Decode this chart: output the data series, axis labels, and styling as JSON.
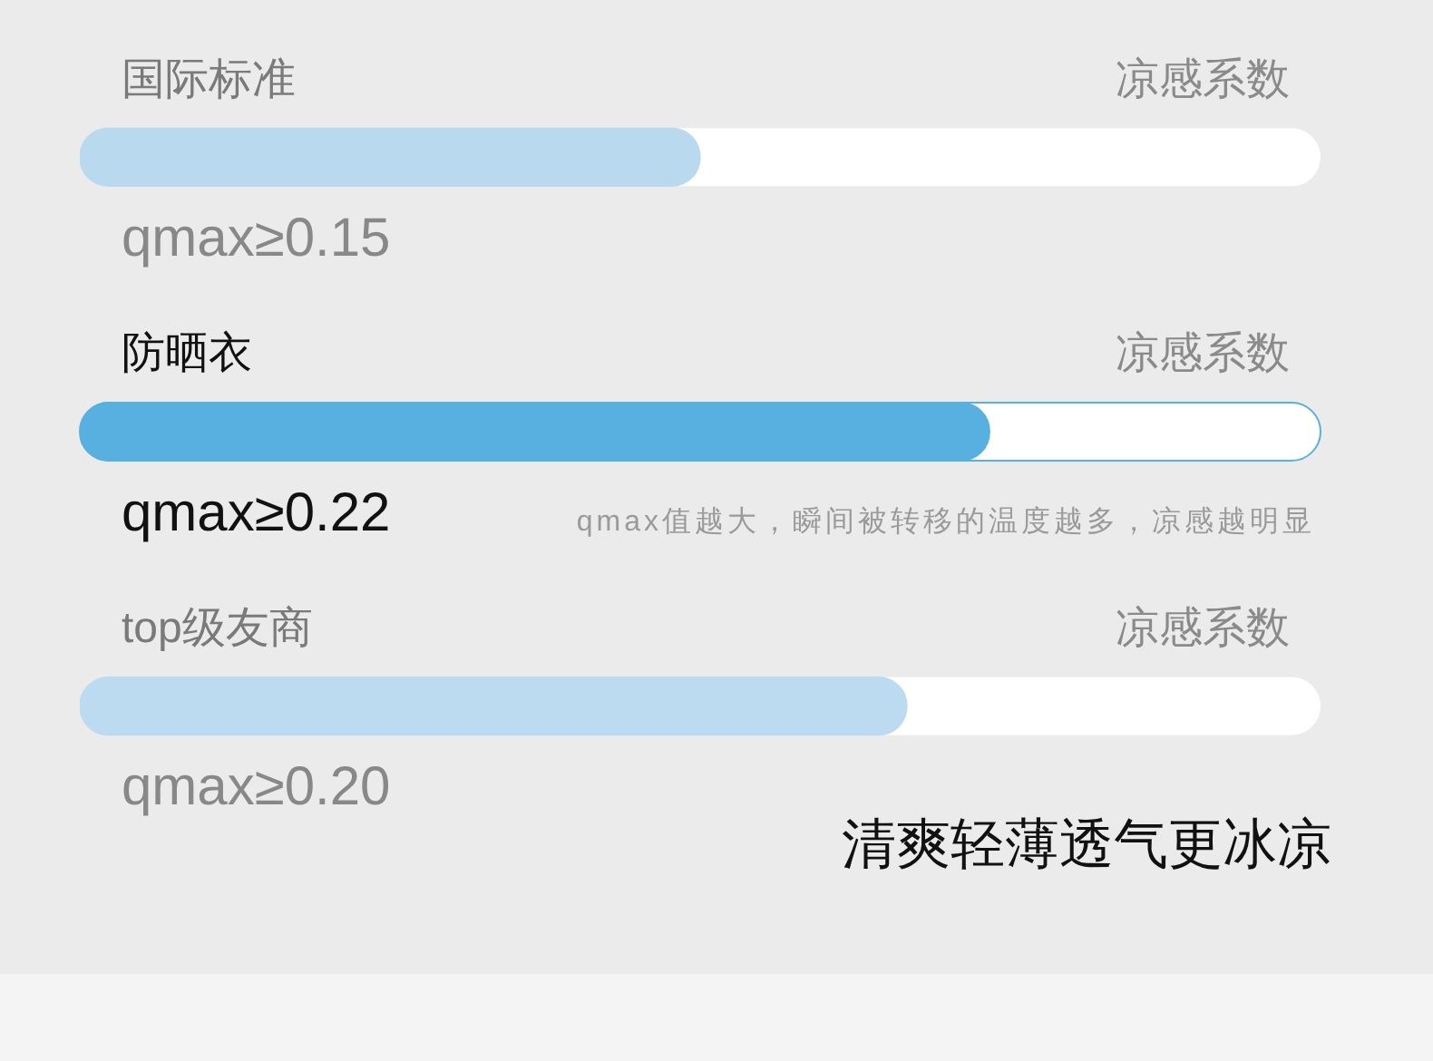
{
  "chart_data": {
    "type": "bar",
    "orientation": "horizontal",
    "categories": [
      "国际标准",
      "防晒衣",
      "top级友商"
    ],
    "values": [
      0.15,
      0.22,
      0.2
    ],
    "colors": [
      "#b9d9ef",
      "#58b0e0",
      "#bcdaf0"
    ],
    "value_labels": [
      "qmax≥0.15",
      "qmax≥0.22",
      "qmax≥0.20"
    ],
    "xlabel": "凉感系数",
    "annotations": [
      "qmax值越大，瞬间被转移的温度越多，凉感越明显",
      "清爽轻薄透气更冰凉"
    ]
  }
}
